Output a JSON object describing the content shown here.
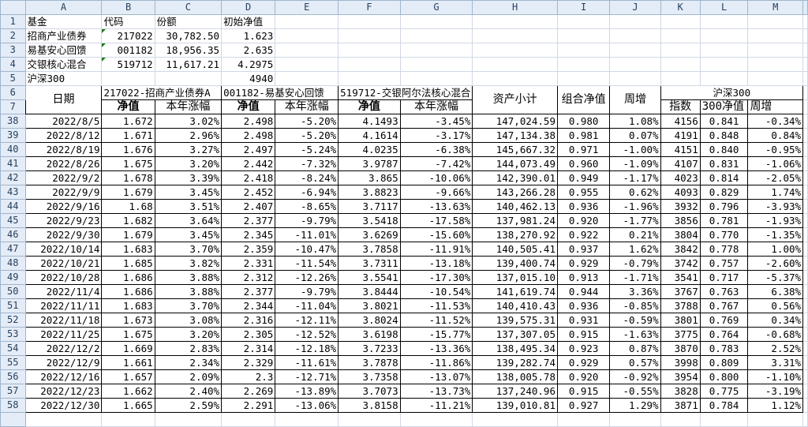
{
  "columns": [
    "A",
    "B",
    "C",
    "D",
    "E",
    "F",
    "G",
    "H",
    "I",
    "J",
    "K",
    "L",
    "M"
  ],
  "info_rows": [
    {
      "row": "1",
      "cells": [
        "基金",
        "代码",
        "份额",
        "初始净值"
      ]
    },
    {
      "row": "2",
      "cells": [
        "招商产业债券",
        "217022",
        "30,782.50",
        "1.623"
      ]
    },
    {
      "row": "3",
      "cells": [
        "易基安心回馈",
        "001182",
        "18,956.35",
        "2.635"
      ]
    },
    {
      "row": "4",
      "cells": [
        "交银核心混合",
        "519712",
        "11,617.21",
        "4.2975"
      ]
    },
    {
      "row": "5",
      "cells": [
        "沪深300",
        "",
        "",
        "4940"
      ]
    }
  ],
  "header": {
    "row6": "6",
    "row7": "7",
    "date": "日期",
    "fund1": "217022-招商产业债券A",
    "fund2": "001182-易基安心回馈",
    "fund3": "519712-交银阿尔法核心混合",
    "nav": "净值",
    "ytd": "本年涨幅",
    "assets": "资产小计",
    "portfolio_nav": "组合净值",
    "weekly": "周增",
    "hs300": "沪深300",
    "index": "指数",
    "nav300": "300净值",
    "weekly300": "周增"
  },
  "rows": [
    [
      "38",
      "2022/8/5",
      "1.672",
      "3.02%",
      "2.498",
      "-5.20%",
      "4.1493",
      "-3.45%",
      "147,024.59",
      "0.980",
      "1.08%",
      "4156",
      "0.841",
      "-0.34%"
    ],
    [
      "39",
      "2022/8/12",
      "1.671",
      "2.96%",
      "2.498",
      "-5.20%",
      "4.1614",
      "-3.17%",
      "147,134.38",
      "0.981",
      "0.07%",
      "4191",
      "0.848",
      "0.84%"
    ],
    [
      "40",
      "2022/8/19",
      "1.676",
      "3.27%",
      "2.497",
      "-5.24%",
      "4.0235",
      "-6.38%",
      "145,667.32",
      "0.971",
      "-1.00%",
      "4151",
      "0.840",
      "-0.95%"
    ],
    [
      "41",
      "2022/8/26",
      "1.675",
      "3.20%",
      "2.442",
      "-7.32%",
      "3.9787",
      "-7.42%",
      "144,073.49",
      "0.960",
      "-1.09%",
      "4107",
      "0.831",
      "-1.06%"
    ],
    [
      "42",
      "2022/9/2",
      "1.678",
      "3.39%",
      "2.418",
      "-8.24%",
      "3.865",
      "-10.06%",
      "142,390.01",
      "0.949",
      "-1.17%",
      "4023",
      "0.814",
      "-2.05%"
    ],
    [
      "43",
      "2022/9/9",
      "1.679",
      "3.45%",
      "2.452",
      "-6.94%",
      "3.8823",
      "-9.66%",
      "143,266.28",
      "0.955",
      "0.62%",
      "4093",
      "0.829",
      "1.74%"
    ],
    [
      "44",
      "2022/9/16",
      "1.68",
      "3.51%",
      "2.407",
      "-8.65%",
      "3.7117",
      "-13.63%",
      "140,462.13",
      "0.936",
      "-1.96%",
      "3932",
      "0.796",
      "-3.93%"
    ],
    [
      "45",
      "2022/9/23",
      "1.682",
      "3.64%",
      "2.377",
      "-9.79%",
      "3.5418",
      "-17.58%",
      "137,981.24",
      "0.920",
      "-1.77%",
      "3856",
      "0.781",
      "-1.93%"
    ],
    [
      "46",
      "2022/9/30",
      "1.679",
      "3.45%",
      "2.345",
      "-11.01%",
      "3.6269",
      "-15.60%",
      "138,270.92",
      "0.922",
      "0.21%",
      "3804",
      "0.770",
      "-1.35%"
    ],
    [
      "47",
      "2022/10/14",
      "1.683",
      "3.70%",
      "2.359",
      "-10.47%",
      "3.7858",
      "-11.91%",
      "140,505.41",
      "0.937",
      "1.62%",
      "3842",
      "0.778",
      "1.00%"
    ],
    [
      "48",
      "2022/10/21",
      "1.685",
      "3.82%",
      "2.331",
      "-11.54%",
      "3.7311",
      "-13.18%",
      "139,400.74",
      "0.929",
      "-0.79%",
      "3742",
      "0.757",
      "-2.60%"
    ],
    [
      "49",
      "2022/10/28",
      "1.686",
      "3.88%",
      "2.312",
      "-12.26%",
      "3.5541",
      "-17.30%",
      "137,015.10",
      "0.913",
      "-1.71%",
      "3541",
      "0.717",
      "-5.37%"
    ],
    [
      "50",
      "2022/11/4",
      "1.686",
      "3.88%",
      "2.377",
      "-9.79%",
      "3.8444",
      "-10.54%",
      "141,619.74",
      "0.944",
      "3.36%",
      "3767",
      "0.763",
      "6.38%"
    ],
    [
      "51",
      "2022/11/11",
      "1.683",
      "3.70%",
      "2.344",
      "-11.04%",
      "3.8021",
      "-11.53%",
      "140,410.43",
      "0.936",
      "-0.85%",
      "3788",
      "0.767",
      "0.56%"
    ],
    [
      "52",
      "2022/11/18",
      "1.673",
      "3.08%",
      "2.316",
      "-12.11%",
      "3.8024",
      "-11.52%",
      "139,575.31",
      "0.931",
      "-0.59%",
      "3801",
      "0.769",
      "0.34%"
    ],
    [
      "53",
      "2022/11/25",
      "1.675",
      "3.20%",
      "2.305",
      "-12.52%",
      "3.6198",
      "-15.77%",
      "137,307.05",
      "0.915",
      "-1.63%",
      "3775",
      "0.764",
      "-0.68%"
    ],
    [
      "54",
      "2022/12/2",
      "1.669",
      "2.83%",
      "2.314",
      "-12.18%",
      "3.7233",
      "-13.36%",
      "138,495.34",
      "0.923",
      "0.87%",
      "3870",
      "0.783",
      "2.52%"
    ],
    [
      "55",
      "2022/12/9",
      "1.661",
      "2.34%",
      "2.329",
      "-11.61%",
      "3.7878",
      "-11.86%",
      "139,282.74",
      "0.929",
      "0.57%",
      "3998",
      "0.809",
      "3.31%"
    ],
    [
      "56",
      "2022/12/16",
      "1.657",
      "2.09%",
      "2.3",
      "-12.71%",
      "3.7358",
      "-13.07%",
      "138,005.78",
      "0.920",
      "-0.92%",
      "3954",
      "0.800",
      "-1.10%"
    ],
    [
      "57",
      "2022/12/23",
      "1.662",
      "2.40%",
      "2.269",
      "-13.89%",
      "3.7073",
      "-13.73%",
      "137,240.96",
      "0.915",
      "-0.55%",
      "3828",
      "0.775",
      "-3.19%"
    ],
    [
      "58",
      "2022/12/30",
      "1.665",
      "2.59%",
      "2.291",
      "-13.06%",
      "3.8158",
      "-11.21%",
      "139,010.81",
      "0.927",
      "1.29%",
      "3871",
      "0.784",
      "1.12%"
    ]
  ]
}
